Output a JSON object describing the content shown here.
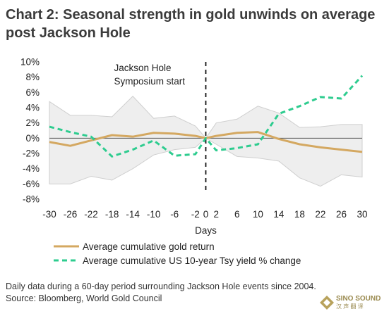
{
  "title": {
    "line1": "Chart 2: Seasonal strength in gold unwinds on average",
    "line2": "post Jackson Hole"
  },
  "footer": {
    "note": "Daily data during a 60-day period surrounding Jackson Hole events since 2004.",
    "source": "Source: Bloomberg, World Gold Council"
  },
  "logo": {
    "text": "SINO SOUND",
    "sub": "汉 声 翻 译"
  },
  "colors": {
    "gold": "#d4a861",
    "yield": "#2ecc8f",
    "band": "#eeeeee",
    "band_edge": "#cfcfcf"
  },
  "chart_data": {
    "type": "line",
    "xlabel": "Days",
    "ylabel": "",
    "xlim": [
      -30,
      30
    ],
    "ylim": [
      -8,
      10
    ],
    "x_ticks": [
      -30,
      -26,
      -22,
      -18,
      -14,
      -10,
      -6,
      -2,
      0,
      2,
      6,
      10,
      14,
      18,
      22,
      26,
      30
    ],
    "y_ticks": [
      -8,
      -6,
      -4,
      -2,
      0,
      2,
      4,
      6,
      8,
      10
    ],
    "y_tick_labels": [
      "-8%",
      "-6%",
      "-4%",
      "-2%",
      "0%",
      "2%",
      "4%",
      "6%",
      "8%",
      "10%"
    ],
    "annotation": {
      "line1": "Jackson Hole",
      "line2": "Symposium start",
      "x": 0
    },
    "legend_position": "bottom",
    "series": [
      {
        "name": "Average cumulative gold return",
        "style": "solid",
        "x": [
          -30,
          -26,
          -22,
          -18,
          -14,
          -10,
          -6,
          -2,
          0,
          2,
          6,
          10,
          14,
          18,
          22,
          26,
          30
        ],
        "values": [
          -0.5,
          -1.0,
          -0.3,
          0.4,
          0.2,
          0.7,
          0.6,
          0.3,
          0.0,
          0.3,
          0.7,
          0.8,
          -0.1,
          -0.8,
          -1.2,
          -1.5,
          -1.8
        ]
      },
      {
        "name": "Average cumulative US 10-year Tsy yield % change",
        "style": "dashed",
        "x": [
          -30,
          -26,
          -22,
          -18,
          -14,
          -10,
          -6,
          -2,
          0,
          2,
          6,
          10,
          14,
          18,
          22,
          26,
          30
        ],
        "values": [
          1.5,
          0.8,
          0.2,
          -2.4,
          -1.5,
          -0.3,
          -2.3,
          -2.1,
          0.0,
          -1.6,
          -1.3,
          -0.8,
          3.2,
          4.2,
          5.4,
          5.2,
          8.2
        ]
      }
    ],
    "band": {
      "x": [
        -30,
        -26,
        -22,
        -18,
        -14,
        -10,
        -6,
        -2,
        0,
        2,
        6,
        10,
        14,
        18,
        22,
        26,
        30
      ],
      "upper": [
        4.8,
        3.0,
        3.0,
        2.8,
        5.5,
        2.6,
        2.9,
        1.6,
        0.0,
        2.0,
        2.5,
        4.2,
        3.3,
        1.4,
        1.5,
        1.8,
        1.8
      ],
      "lower": [
        -6.0,
        -6.0,
        -5.0,
        -5.5,
        -4.0,
        -2.2,
        -1.5,
        -1.2,
        0.0,
        -0.8,
        -2.4,
        -2.6,
        -3.0,
        -5.2,
        -6.3,
        -4.8,
        -5.1
      ]
    }
  }
}
